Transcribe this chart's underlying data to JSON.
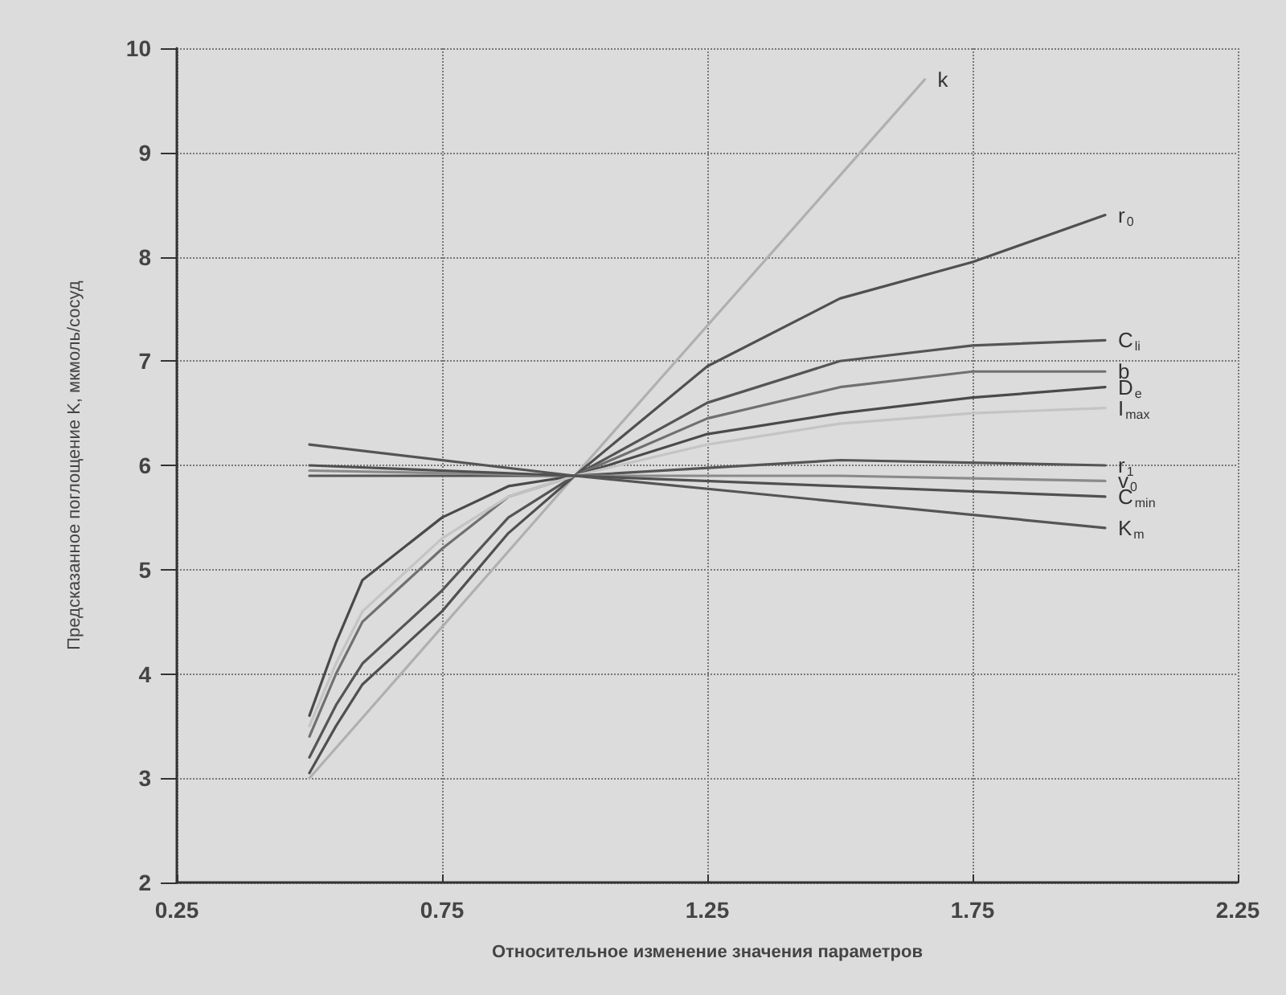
{
  "chart_data": {
    "type": "line",
    "xlabel": "Относительное изменение значения параметров",
    "ylabel": "Предсказанное поглощение K, мкмоль/сосуд",
    "xlim": [
      0.25,
      2.25
    ],
    "xticks": [
      0.25,
      0.75,
      1.25,
      1.75,
      2.25
    ],
    "ylim": [
      2,
      10
    ],
    "yticks": [
      2,
      3,
      4,
      5,
      6,
      7,
      8,
      9,
      10
    ],
    "grid": true,
    "legend": false,
    "marker": "none",
    "line_style": "solid",
    "x": [
      0.5,
      0.55,
      0.6,
      0.75,
      0.875,
      1.0,
      1.25,
      1.5,
      1.75,
      2.0
    ],
    "series": [
      {
        "name": "k",
        "color": "#b0b0b0",
        "x": [
          0.5,
          1.0,
          1.66
        ],
        "values": [
          3.0,
          5.9,
          9.7
        ]
      },
      {
        "name": "r$_{0}$",
        "color": "#505050",
        "values": [
          3.05,
          3.5,
          3.9,
          4.6,
          5.35,
          5.9,
          6.95,
          7.6,
          7.95,
          8.4
        ]
      },
      {
        "name": "C$_{li}$",
        "color": "#555555",
        "values": [
          3.2,
          3.7,
          4.1,
          4.8,
          5.5,
          5.9,
          6.6,
          7.0,
          7.15,
          7.2
        ]
      },
      {
        "name": "b",
        "color": "#707070",
        "values": [
          3.4,
          4.0,
          4.5,
          5.2,
          5.7,
          5.9,
          6.45,
          6.75,
          6.9,
          6.9
        ]
      },
      {
        "name": "D$_{e}$",
        "color": "#4a4a4a",
        "values": [
          3.6,
          4.3,
          4.9,
          5.5,
          5.8,
          5.9,
          6.3,
          6.5,
          6.65,
          6.75
        ]
      },
      {
        "name": "I$_{max}$",
        "color": "#c4c4c4",
        "values": [
          3.5,
          4.1,
          4.6,
          5.3,
          5.7,
          5.9,
          6.2,
          6.4,
          6.5,
          6.55
        ]
      },
      {
        "name": "r$_{1}$",
        "color": "#555555",
        "x": [
          0.5,
          1.0,
          1.5,
          2.0
        ],
        "values": [
          5.9,
          5.9,
          6.05,
          6.0
        ]
      },
      {
        "name": "v$_{0}$",
        "color": "#8a8a8a",
        "x": [
          0.5,
          1.0,
          1.5,
          2.0
        ],
        "values": [
          5.95,
          5.9,
          5.9,
          5.85
        ]
      },
      {
        "name": "C$_{min}$",
        "color": "#505050",
        "x": [
          0.5,
          1.0,
          1.5,
          2.0
        ],
        "values": [
          6.0,
          5.9,
          5.8,
          5.7
        ]
      },
      {
        "name": "K$_{m}$",
        "color": "#555555",
        "x": [
          0.5,
          1.0,
          2.0
        ],
        "values": [
          6.2,
          5.9,
          5.4
        ]
      }
    ]
  }
}
